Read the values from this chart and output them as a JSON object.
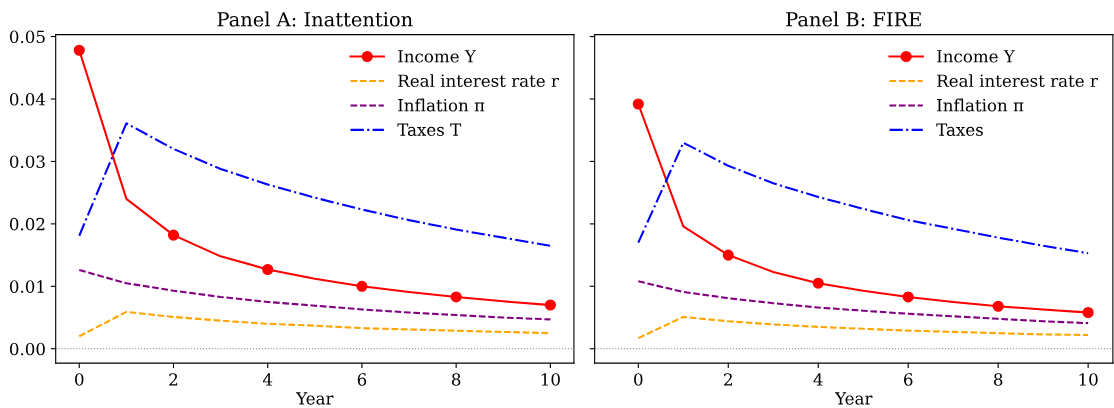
{
  "chart_data": [
    {
      "type": "line",
      "title": "Panel A: Inattention",
      "xlabel": "Year",
      "x": [
        0,
        1,
        2,
        3,
        4,
        5,
        6,
        7,
        8,
        9,
        10
      ],
      "xlim": [
        -0.5,
        10.5
      ],
      "xticks": [
        0,
        2,
        4,
        6,
        8,
        10
      ],
      "ylim": [
        -0.0023,
        0.0503
      ],
      "yticks": [
        {
          "value": 0,
          "label": "0.00"
        },
        {
          "value": 0.01,
          "label": "0.01"
        },
        {
          "value": 0.02,
          "label": "0.02"
        },
        {
          "value": 0.03,
          "label": "0.03"
        },
        {
          "value": 0.04,
          "label": "0.04"
        },
        {
          "value": 0.05,
          "label": "0.05"
        }
      ],
      "grid": false,
      "legend": "top right",
      "ref_lines": [
        {
          "axis": "y",
          "value": 0,
          "color": "#808080",
          "line_style": "dotted"
        }
      ],
      "series": [
        {
          "name": "Income Y",
          "color": "#ff0000",
          "marker": "circle",
          "line_style": "solid",
          "values": [
            0.0478,
            0.024,
            0.0182,
            0.0148,
            0.0127,
            0.0112,
            0.01,
            0.0091,
            0.0083,
            0.0076,
            0.007
          ]
        },
        {
          "name": "Real interest rate r",
          "color": "#ffa500",
          "line_style": "dashed",
          "values": [
            0.002,
            0.0059,
            0.0051,
            0.0045,
            0.004,
            0.0037,
            0.0033,
            0.0031,
            0.0029,
            0.0027,
            0.0025
          ]
        },
        {
          "name": "Inflation π",
          "color": "#800080",
          "line_style": "dashed",
          "values": [
            0.0126,
            0.0105,
            0.0093,
            0.0083,
            0.0075,
            0.0069,
            0.0063,
            0.0058,
            0.0054,
            0.005,
            0.0047
          ]
        },
        {
          "name": "Taxes T",
          "color": "#0000ff",
          "line_style": "dashdot",
          "values": [
            0.0181,
            0.0361,
            0.032,
            0.0288,
            0.0263,
            0.0242,
            0.0223,
            0.0206,
            0.0191,
            0.0178,
            0.0165
          ]
        }
      ]
    },
    {
      "type": "line",
      "title": "Panel B: FIRE",
      "xlabel": "Year",
      "x": [
        0,
        1,
        2,
        3,
        4,
        5,
        6,
        7,
        8,
        9,
        10
      ],
      "xlim": [
        -0.97,
        10.55
      ],
      "xticks": [
        0,
        2,
        4,
        6,
        8,
        10
      ],
      "ylim": [
        -0.0023,
        0.0503
      ],
      "yticks": [
        {
          "value": 0,
          "label": null
        },
        {
          "value": 0.01,
          "label": null
        },
        {
          "value": 0.02,
          "label": null
        },
        {
          "value": 0.03,
          "label": null
        },
        {
          "value": 0.04,
          "label": null
        },
        {
          "value": 0.05,
          "label": null
        }
      ],
      "tick_labels": "x",
      "grid": false,
      "legend": "top right",
      "ref_lines": [
        {
          "axis": "y",
          "value": 0,
          "color": "#808080",
          "line_style": "dotted"
        }
      ],
      "series": [
        {
          "name": "Income Y",
          "color": "#ff0000",
          "marker": "circle",
          "line_style": "solid",
          "values": [
            0.0392,
            0.0196,
            0.015,
            0.0123,
            0.0105,
            0.0093,
            0.0083,
            0.0075,
            0.0068,
            0.0063,
            0.0058
          ]
        },
        {
          "name": "Real interest rate r",
          "color": "#ffa500",
          "line_style": "dashed",
          "values": [
            0.0017,
            0.0051,
            0.0044,
            0.0039,
            0.0035,
            0.0032,
            0.0029,
            0.0027,
            0.0025,
            0.0023,
            0.0022
          ]
        },
        {
          "name": "Inflation π",
          "color": "#800080",
          "line_style": "dashed",
          "values": [
            0.0108,
            0.0091,
            0.0081,
            0.0073,
            0.0066,
            0.0061,
            0.0056,
            0.0052,
            0.0048,
            0.0044,
            0.0041
          ]
        },
        {
          "name": "Taxes",
          "color": "#0000ff",
          "line_style": "dashdot",
          "values": [
            0.017,
            0.033,
            0.0293,
            0.0265,
            0.0243,
            0.0224,
            0.0206,
            0.0192,
            0.0178,
            0.0165,
            0.0153
          ]
        }
      ]
    }
  ]
}
